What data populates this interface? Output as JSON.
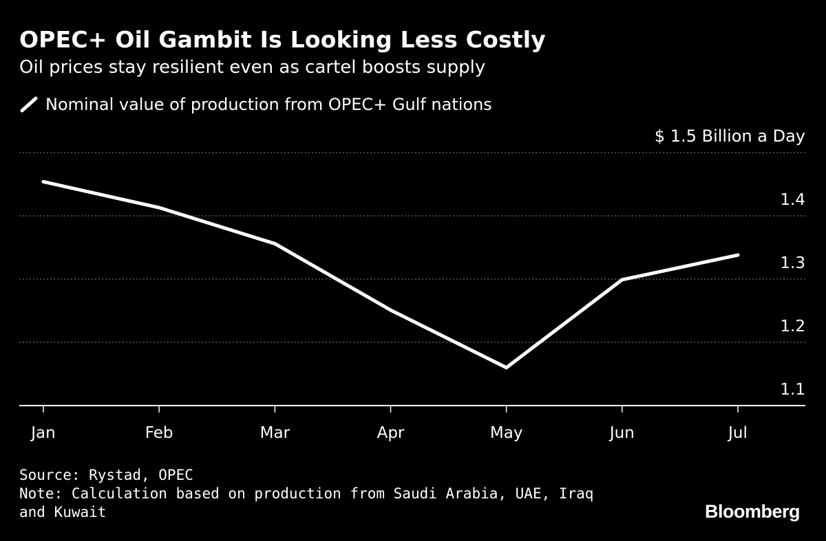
{
  "chart_data": {
    "type": "line",
    "title": "OPEC+ Oil Gambit Is Looking Less Costly",
    "subtitle": "Oil prices stay resilient even as cartel boosts supply",
    "legend": "Nominal value of production from OPEC+ Gulf nations",
    "unit_label": "$ 1.5 Billion a Day",
    "categories": [
      "Jan",
      "Feb",
      "Mar",
      "Apr",
      "May",
      "Jun",
      "Jul"
    ],
    "series": [
      {
        "name": "Nominal value of production from OPEC+ Gulf nations",
        "values": [
          1.454,
          1.413,
          1.356,
          1.251,
          1.16,
          1.299,
          1.338
        ]
      }
    ],
    "yticks": [
      "1.4",
      "1.3",
      "1.2",
      "1.1"
    ],
    "ylim": [
      1.1,
      1.5
    ],
    "grid": true,
    "source": "Source: Rystad, OPEC",
    "note_line1": "Note: Calculation based on production from Saudi Arabia, UAE, Iraq",
    "note_line2": "and Kuwait",
    "brand": "Bloomberg",
    "colors": {
      "background": "#000000",
      "line": "#ffffff",
      "grid": "#8a8a8a",
      "text": "#ffffff"
    }
  }
}
